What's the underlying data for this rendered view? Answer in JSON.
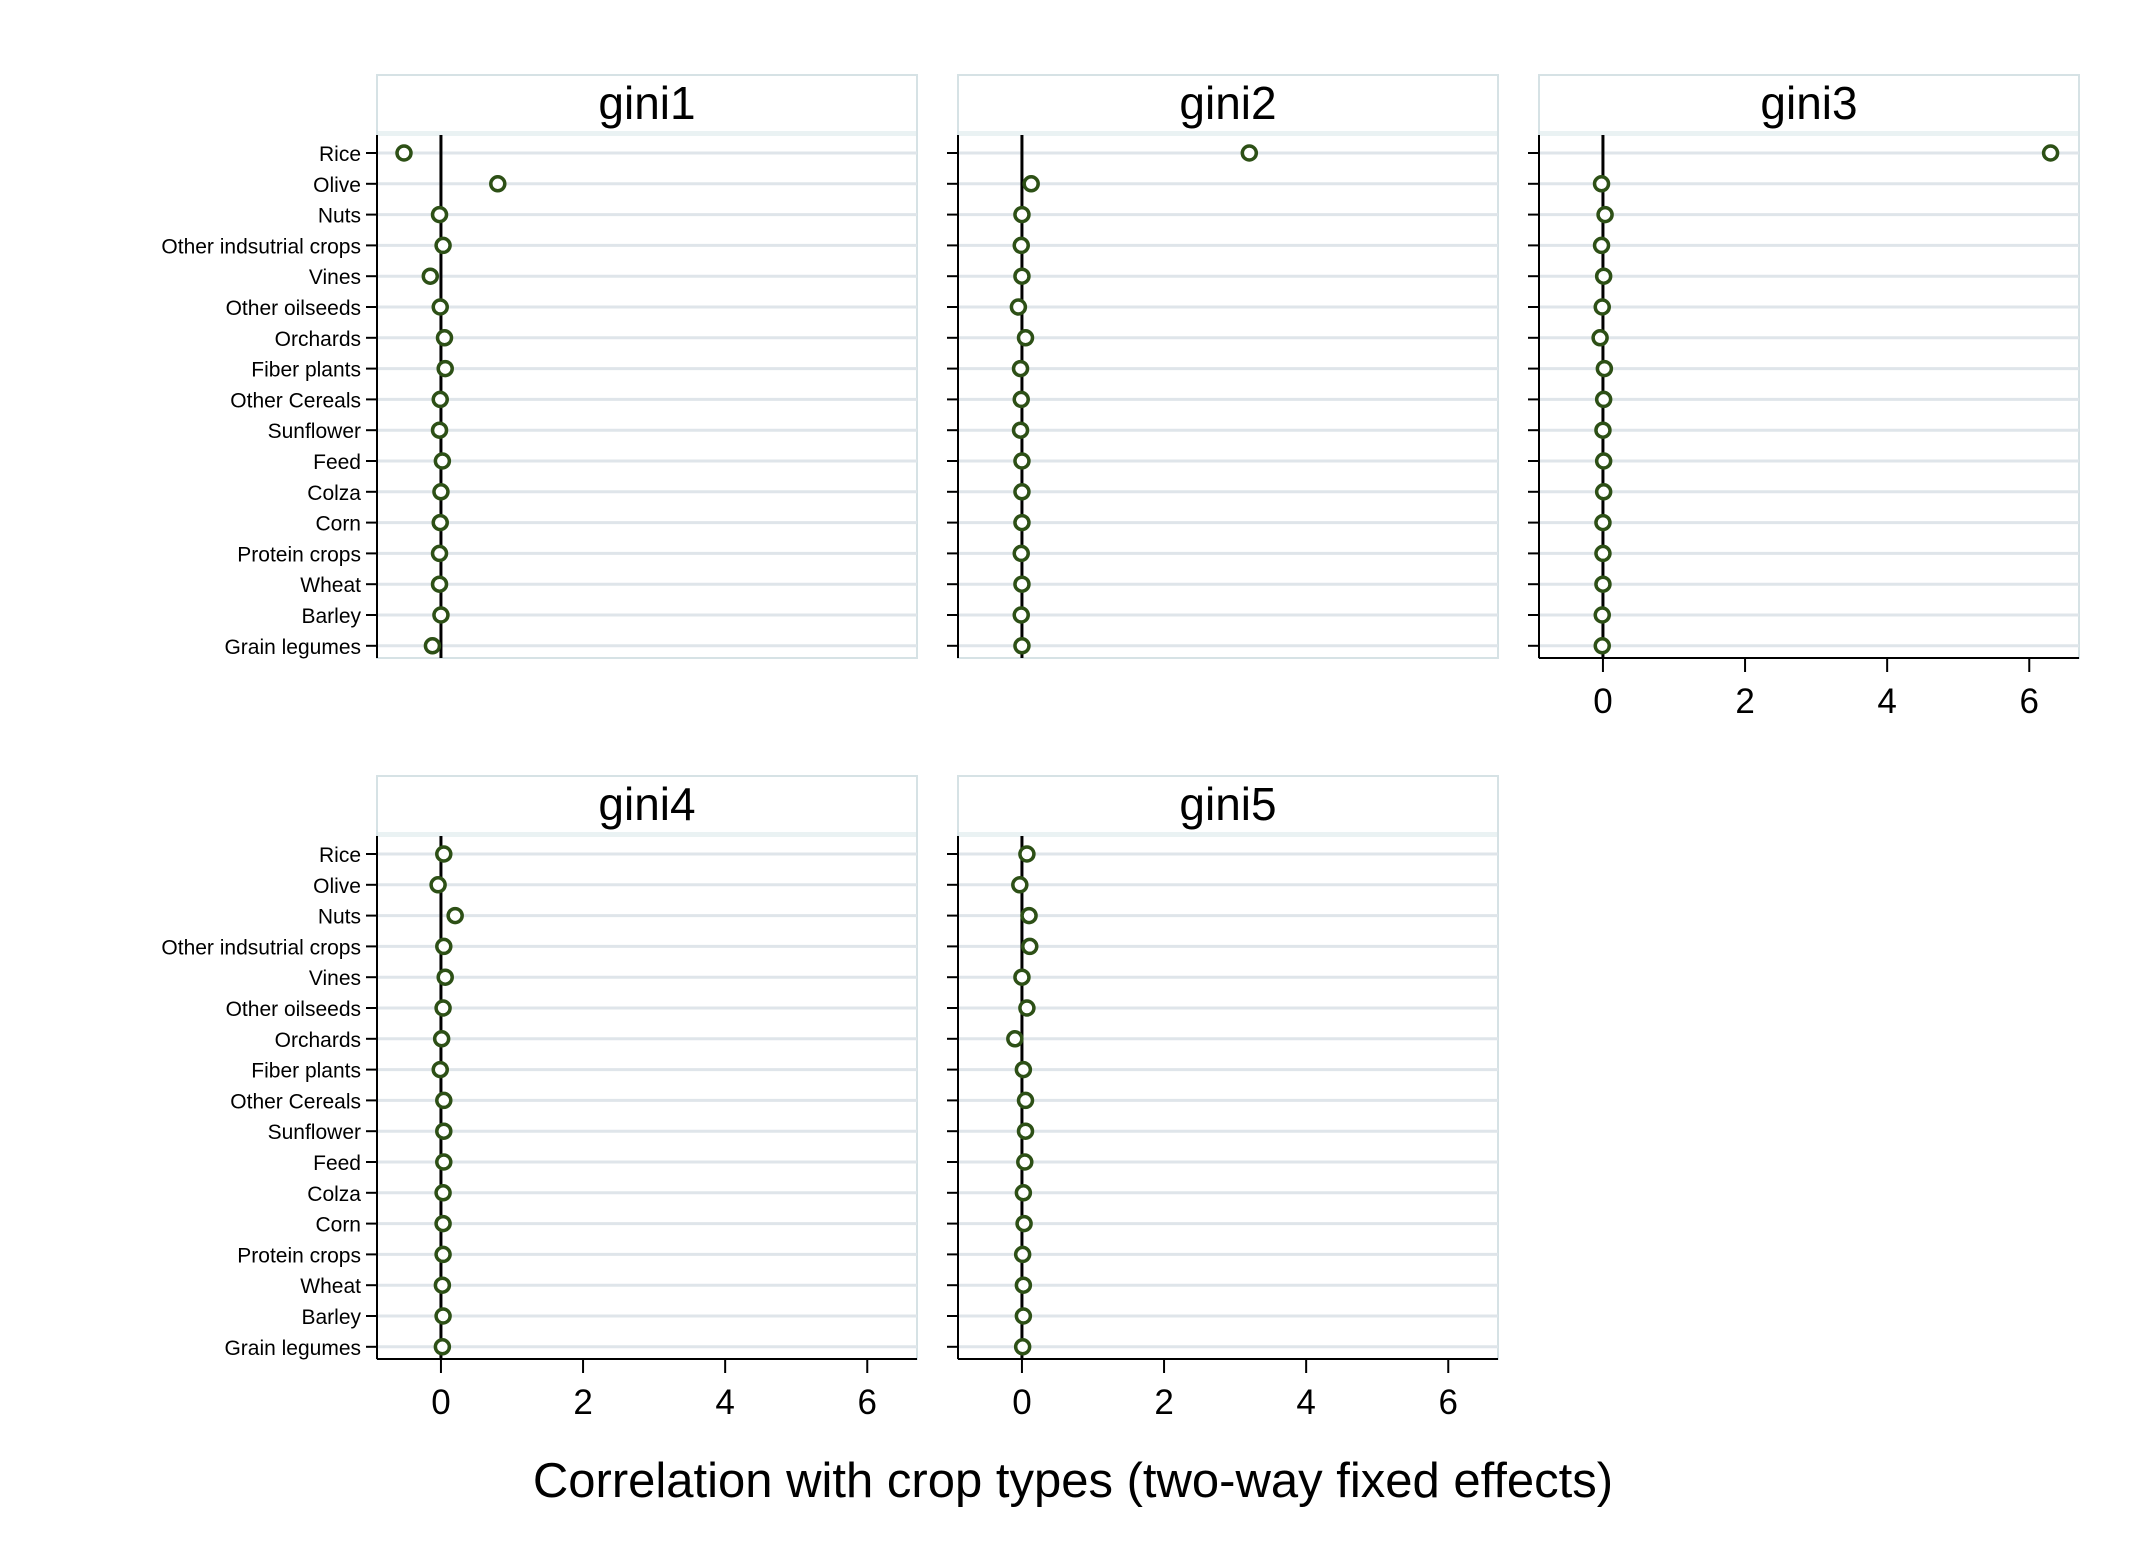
{
  "chart_data": {
    "type": "scatter",
    "xlabel": "Correlation with crop types (two-way fixed effects)",
    "xlim": [
      -0.9,
      6.7
    ],
    "xticks": [
      0,
      2,
      4,
      6
    ],
    "reference_line_x": 0,
    "grid": "horizontal",
    "categories": [
      "Rice",
      "Olive",
      "Nuts",
      "Other indsutrial crops",
      "Vines",
      "Other oilseeds",
      "Orchards",
      "Fiber plants",
      "Other Cereals",
      "Sunflower",
      "Feed",
      "Colza",
      "Corn",
      "Protein crops",
      "Wheat",
      "Barley",
      "Grain legumes"
    ],
    "colors": {
      "marker": "#2d5016",
      "grid": "#dfe5ea",
      "title_band": "#eaf2f3",
      "panel_border": "#d6e2e5",
      "axis": "#000000"
    },
    "panels": [
      {
        "title": "gini1",
        "values": [
          -0.52,
          0.8,
          -0.02,
          0.03,
          -0.15,
          -0.01,
          0.05,
          0.06,
          -0.01,
          -0.02,
          0.02,
          0.0,
          -0.01,
          -0.02,
          -0.02,
          0.0,
          -0.12
        ]
      },
      {
        "title": "gini2",
        "values": [
          3.2,
          0.13,
          0.0,
          -0.01,
          0.0,
          -0.05,
          0.05,
          -0.02,
          -0.01,
          -0.02,
          0.0,
          0.0,
          0.0,
          -0.01,
          0.0,
          -0.01,
          0.0
        ]
      },
      {
        "title": "gini3",
        "values": [
          6.3,
          -0.02,
          0.03,
          -0.02,
          0.01,
          -0.01,
          -0.04,
          0.02,
          0.01,
          0.0,
          0.01,
          0.01,
          0.0,
          0.0,
          0.0,
          -0.01,
          -0.01
        ]
      },
      {
        "title": "gini4",
        "values": [
          0.04,
          -0.04,
          0.2,
          0.04,
          0.06,
          0.03,
          0.01,
          -0.01,
          0.04,
          0.04,
          0.04,
          0.03,
          0.03,
          0.03,
          0.02,
          0.03,
          0.02
        ]
      },
      {
        "title": "gini5",
        "values": [
          0.07,
          -0.03,
          0.1,
          0.11,
          0.0,
          0.07,
          -0.1,
          0.02,
          0.05,
          0.05,
          0.04,
          0.02,
          0.03,
          0.01,
          0.02,
          0.02,
          0.01
        ]
      }
    ]
  }
}
